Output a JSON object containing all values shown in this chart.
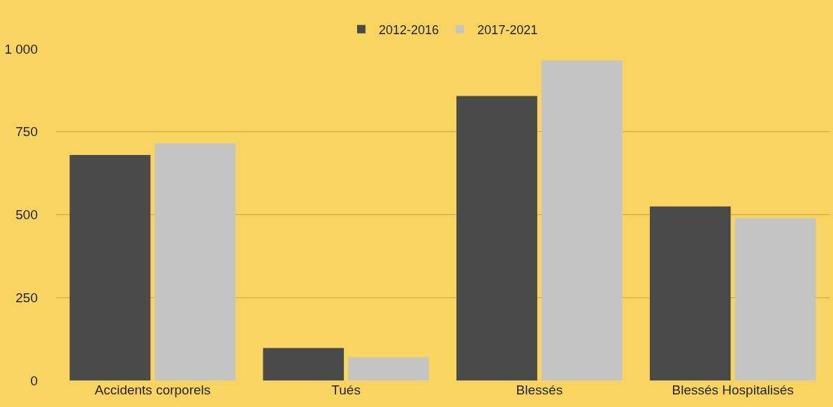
{
  "chart_data": {
    "type": "bar",
    "categories": [
      "Accidents corporels",
      "Tués",
      "Blessés",
      "Blessés Hospitalisés"
    ],
    "series": [
      {
        "name": "2012-2016",
        "color": "#4a4a4a",
        "values": [
          680,
          98,
          858,
          525
        ]
      },
      {
        "name": "2017-2021",
        "color": "#c4c4c4",
        "values": [
          715,
          70,
          965,
          490
        ]
      }
    ],
    "ylim": [
      0,
      1000
    ],
    "yticks": [
      0,
      250,
      500,
      750,
      {
        "value": 1000,
        "label": "1 000"
      }
    ],
    "grid": "y",
    "legend": "top"
  }
}
